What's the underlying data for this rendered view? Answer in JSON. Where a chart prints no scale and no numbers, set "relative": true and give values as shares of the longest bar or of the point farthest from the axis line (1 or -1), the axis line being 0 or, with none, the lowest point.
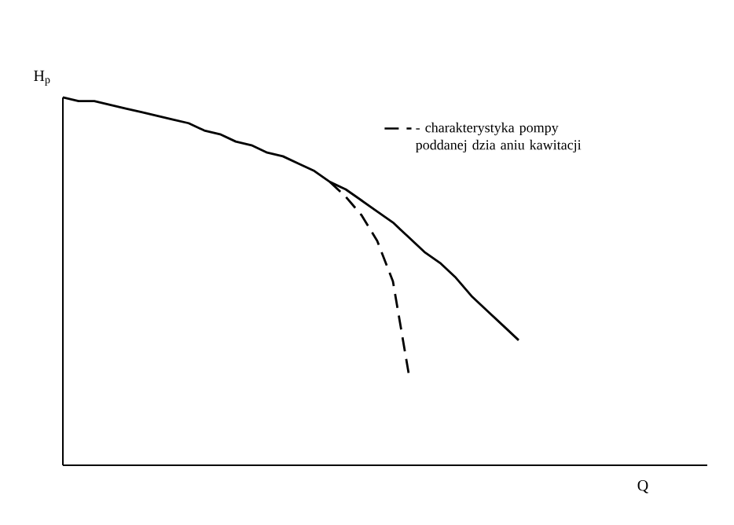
{
  "chart_data": {
    "type": "line",
    "relative": true,
    "annotations": [
      "Q"
    ],
    "ylabel": "H$_{p}$",
    "legend": "top right",
    "categories": [
      null,
      null,
      null,
      null,
      null,
      null,
      null,
      null,
      null,
      null,
      null,
      null,
      null,
      null,
      null,
      null,
      null,
      null,
      null,
      null,
      null,
      null,
      null,
      null,
      null,
      null,
      null,
      null,
      null,
      null
    ],
    "series": [
      {
        "color": "#000000",
        "line_style": "solid",
        "values": [
          1.0,
          0.99,
          0.99,
          0.98,
          0.97,
          0.96,
          0.95,
          0.94,
          0.93,
          0.91,
          0.9,
          0.88,
          0.87,
          0.85,
          0.84,
          0.82,
          0.8,
          0.77,
          0.75,
          0.72,
          0.69,
          0.66,
          0.62,
          0.58,
          0.55,
          0.51,
          0.46,
          0.42,
          0.38,
          0.34
        ]
      },
      {
        "name": "- charakterystyka pompy poddanej dzia aniu kawitacji",
        "color": "#000000",
        "line_style": "dashed",
        "values": [
          null,
          null,
          null,
          null,
          null,
          null,
          null,
          null,
          null,
          null,
          null,
          null,
          null,
          null,
          null,
          null,
          null,
          0.77,
          0.73,
          0.68,
          0.61,
          0.5,
          0.25,
          null,
          null,
          null,
          null,
          null,
          null,
          null
        ]
      }
    ]
  }
}
